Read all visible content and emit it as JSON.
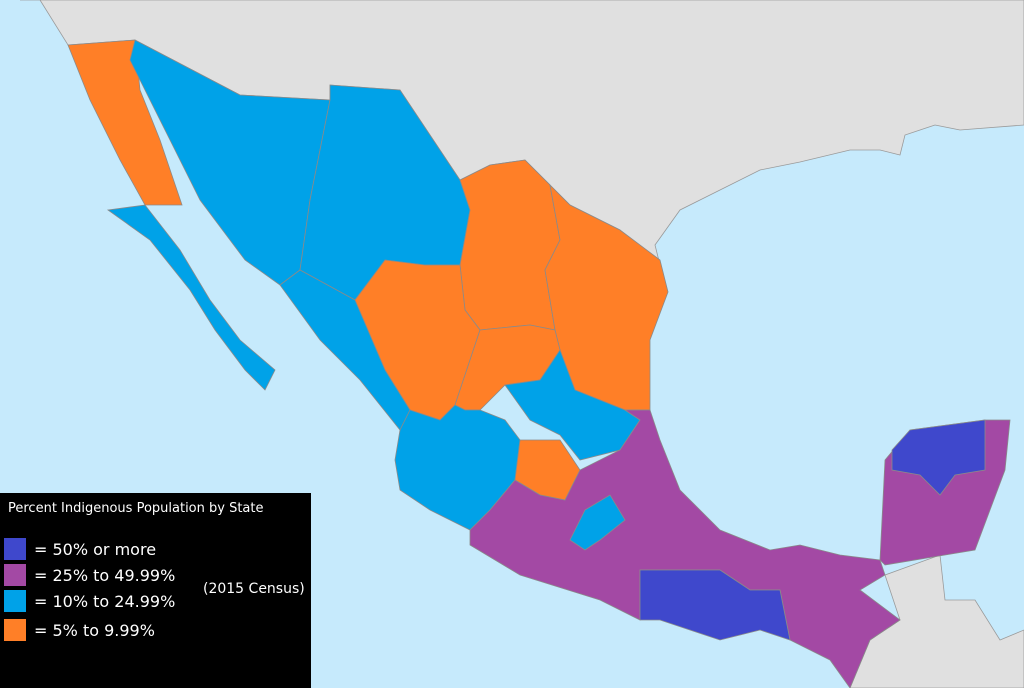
{
  "legend": {
    "title": "Percent Indigenous Population by State",
    "note": "(2015 Census)",
    "items": [
      {
        "key": "c50",
        "label": "= 50% or more",
        "color": "#3f48cc"
      },
      {
        "key": "c25",
        "label": "= 25% to 49.99%",
        "color": "#a349a4"
      },
      {
        "key": "c10",
        "label": "= 10% to 24.99%",
        "color": "#00a2e8"
      },
      {
        "key": "c5",
        "label": "= 5% to 9.99%",
        "color": "#ff7f27"
      }
    ]
  },
  "colors": {
    "water": "#c6eafc",
    "other_land": "#e0e0e0"
  }
}
